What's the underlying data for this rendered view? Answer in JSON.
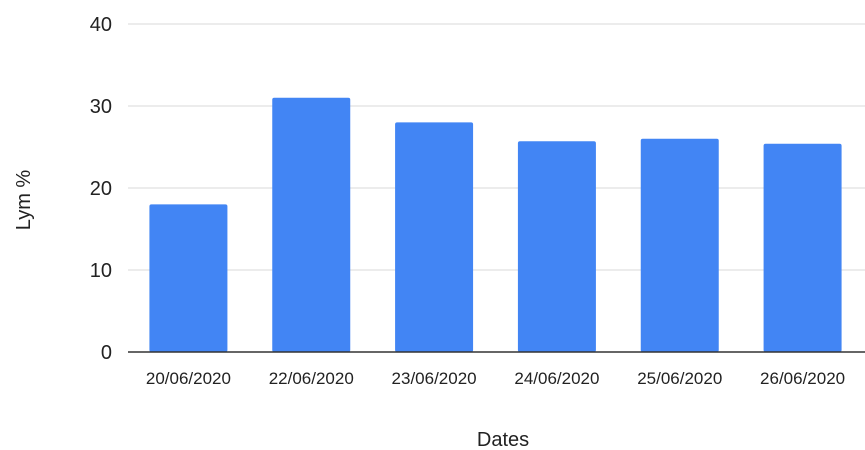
{
  "chart_data": {
    "type": "bar",
    "title": "",
    "xlabel": "Dates",
    "ylabel": "Lym %",
    "categories": [
      "20/06/2020",
      "22/06/2020",
      "23/06/2020",
      "24/06/2020",
      "25/06/2020",
      "26/06/2020"
    ],
    "series": [
      {
        "values": [
          18,
          31,
          28,
          25.7,
          26,
          25.4
        ]
      }
    ],
    "ylim": [
      0,
      40
    ],
    "yticks": [
      0,
      10,
      20,
      30,
      40
    ],
    "grid": true,
    "legend": "none"
  },
  "colors": {
    "bar": "#4285f4",
    "grid": "#d9d9d9",
    "axis": "#333333"
  }
}
